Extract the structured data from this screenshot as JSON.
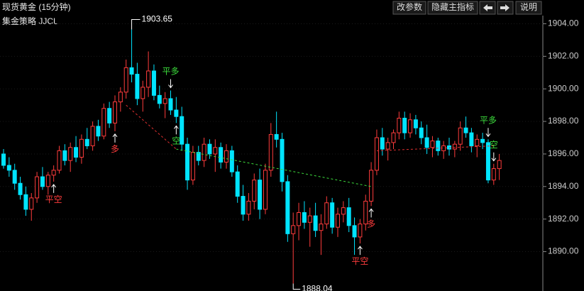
{
  "chart_data": {
    "type": "candlestick",
    "title": "现货黄金 (15分钟)",
    "subtitle": "集金策略 JJCL",
    "buttons": [
      "改参数",
      "隐藏主指标",
      "说明"
    ],
    "up_color": "#ff3c3c",
    "down_color": "#00e4ff",
    "grid": true,
    "ylim": [
      1887.8,
      1904.5
    ],
    "yticks": [
      {
        "value": 1890,
        "label": "1890.00"
      },
      {
        "value": 1892,
        "label": "1892.00"
      },
      {
        "value": 1894,
        "label": "1894.00"
      },
      {
        "value": 1896,
        "label": "1896.00"
      },
      {
        "value": 1898,
        "label": "1898.00"
      },
      {
        "value": 1900,
        "label": "1900.00"
      },
      {
        "value": 1902,
        "label": "1902.00"
      },
      {
        "value": 1904,
        "label": "1904.00"
      }
    ],
    "open": [
      1896.0,
      1895.3,
      1895.0,
      1894.2,
      1893.5,
      1892.6,
      1893.3,
      1894.6,
      1894.0,
      1894.7,
      1895.0,
      1896.2,
      1895.6,
      1896.4,
      1895.8,
      1896.9,
      1896.5,
      1897.7,
      1897.1,
      1898.8,
      1897.9,
      1899.2,
      1899.8,
      1901.3,
      1900.9,
      1899.4,
      1900.1,
      1901.1,
      1899.6,
      1899.1,
      1899.4,
      1898.7,
      1898.3,
      1896.6,
      1894.4,
      1896.1,
      1895.6,
      1896.6,
      1896.0,
      1896.4,
      1895.5,
      1896.2,
      1894.9,
      1893.4,
      1892.3,
      1893.1,
      1894.4,
      1892.6,
      1895.0,
      1897.2,
      1896.9,
      1894.3,
      1891.1,
      1891.6,
      1892.4,
      1891.8,
      1892.2,
      1891.3,
      1891.7,
      1893.0,
      1891.5,
      1892.3,
      1892.7,
      1891.6,
      1890.9,
      1891.7,
      1893.1,
      1895.0,
      1897.0,
      1896.3,
      1896.7,
      1897.3,
      1898.2,
      1897.3,
      1898.1,
      1897.6,
      1897.0,
      1896.4,
      1896.8,
      1896.2,
      1896.5,
      1896.3,
      1896.6,
      1897.6,
      1897.3,
      1896.5,
      1896.9,
      1896.7,
      1894.4,
      1895.1
    ],
    "high": [
      1896.3,
      1895.8,
      1895.4,
      1894.6,
      1894.0,
      1893.6,
      1894.9,
      1895.2,
      1894.9,
      1895.3,
      1896.5,
      1896.6,
      1896.7,
      1897.1,
      1897.2,
      1897.6,
      1898.0,
      1898.1,
      1899.1,
      1899.2,
      1899.6,
      1900.1,
      1901.8,
      1903.65,
      1901.6,
      1900.5,
      1902.3,
      1901.5,
      1900.2,
      1899.8,
      1899.9,
      1899.5,
      1898.9,
      1897.0,
      1896.5,
      1896.5,
      1897.0,
      1896.9,
      1896.9,
      1896.7,
      1896.6,
      1896.5,
      1895.3,
      1894.1,
      1893.6,
      1894.8,
      1895.1,
      1895.4,
      1897.9,
      1898.6,
      1897.3,
      1894.7,
      1892.4,
      1893.0,
      1893.1,
      1892.7,
      1893.0,
      1892.3,
      1893.4,
      1893.3,
      1892.7,
      1893.1,
      1893.3,
      1892.1,
      1892.0,
      1893.5,
      1895.5,
      1897.5,
      1897.6,
      1897.0,
      1897.5,
      1898.6,
      1898.6,
      1898.5,
      1898.4,
      1898.0,
      1897.8,
      1897.1,
      1897.0,
      1896.8,
      1897.0,
      1896.8,
      1898.0,
      1898.3,
      1897.6,
      1897.2,
      1897.3,
      1896.9,
      1895.4,
      1896.0
    ],
    "low": [
      1895.1,
      1894.6,
      1893.8,
      1893.2,
      1892.2,
      1891.9,
      1893.0,
      1893.8,
      1893.5,
      1894.3,
      1894.8,
      1895.3,
      1894.9,
      1895.5,
      1895.4,
      1896.3,
      1896.2,
      1896.8,
      1896.9,
      1897.6,
      1897.4,
      1898.6,
      1899.4,
      1900.4,
      1899.0,
      1898.6,
      1899.5,
      1899.3,
      1898.8,
      1898.2,
      1898.4,
      1897.9,
      1896.2,
      1893.8,
      1894.1,
      1895.3,
      1895.2,
      1895.7,
      1894.9,
      1895.1,
      1895.1,
      1894.6,
      1893.0,
      1891.9,
      1891.9,
      1892.6,
      1892.0,
      1892.3,
      1894.6,
      1896.4,
      1893.7,
      1890.6,
      1888.04,
      1890.7,
      1891.4,
      1890.3,
      1890.9,
      1889.8,
      1891.4,
      1891.1,
      1890.9,
      1891.8,
      1891.2,
      1889.8,
      1890.5,
      1891.3,
      1892.8,
      1894.7,
      1895.9,
      1895.6,
      1896.3,
      1896.9,
      1896.9,
      1897.0,
      1897.2,
      1896.6,
      1896.0,
      1895.8,
      1895.9,
      1895.7,
      1895.9,
      1895.8,
      1896.2,
      1897.0,
      1896.1,
      1895.8,
      1896.3,
      1894.2,
      1894.1,
      1894.4
    ],
    "close": [
      1895.3,
      1895.0,
      1894.2,
      1893.5,
      1892.6,
      1893.3,
      1894.6,
      1894.0,
      1894.7,
      1895.0,
      1896.2,
      1895.6,
      1896.4,
      1895.8,
      1896.9,
      1896.5,
      1897.7,
      1897.1,
      1898.8,
      1897.9,
      1899.2,
      1899.8,
      1901.3,
      1900.9,
      1899.4,
      1900.1,
      1901.1,
      1899.6,
      1899.1,
      1899.4,
      1898.7,
      1898.3,
      1896.6,
      1894.4,
      1896.1,
      1895.6,
      1896.6,
      1896.0,
      1896.4,
      1895.5,
      1896.2,
      1894.9,
      1893.4,
      1892.3,
      1893.1,
      1894.4,
      1892.6,
      1895.0,
      1897.2,
      1896.9,
      1894.3,
      1891.1,
      1891.6,
      1892.4,
      1891.8,
      1892.2,
      1891.3,
      1891.7,
      1893.0,
      1891.5,
      1892.3,
      1892.7,
      1891.6,
      1890.9,
      1891.7,
      1893.1,
      1895.0,
      1897.0,
      1896.3,
      1896.7,
      1897.3,
      1898.2,
      1897.3,
      1898.1,
      1897.6,
      1897.0,
      1896.4,
      1896.8,
      1896.2,
      1896.5,
      1896.3,
      1896.6,
      1897.6,
      1897.3,
      1896.5,
      1896.9,
      1896.7,
      1894.4,
      1895.1,
      1895.6
    ],
    "signals": [
      {
        "label": "平空",
        "index": 9,
        "position": "below",
        "color": "#ff3c3c"
      },
      {
        "label": "多",
        "index": 20,
        "position": "below",
        "color": "#ff3c3c"
      },
      {
        "label": "平多",
        "index": 30,
        "position": "above",
        "color": "#3cdc3c"
      },
      {
        "label": "空",
        "index": 31,
        "position": "below",
        "color": "#3cdc3c"
      },
      {
        "label": "平空",
        "index": 64,
        "position": "below",
        "color": "#ff3c3c"
      },
      {
        "label": "多",
        "index": 66,
        "position": "below",
        "color": "#ff3c3c"
      },
      {
        "label": "平多",
        "index": 87,
        "position": "above",
        "color": "#3cdc3c"
      },
      {
        "label": "空",
        "index": 88,
        "position": "above",
        "color": "#3cdc3c"
      }
    ],
    "trade_lines": [
      {
        "from_index": 22,
        "from_price": 1899.0,
        "to_index": 31,
        "to_price": 1896.3,
        "color": "#e03030"
      },
      {
        "from_index": 31,
        "from_price": 1896.3,
        "to_index": 66,
        "to_price": 1894.0,
        "color": "#3cdc3c"
      },
      {
        "from_index": 67,
        "from_price": 1896.2,
        "to_index": 88,
        "to_price": 1896.5,
        "color": "#e03030"
      }
    ]
  }
}
